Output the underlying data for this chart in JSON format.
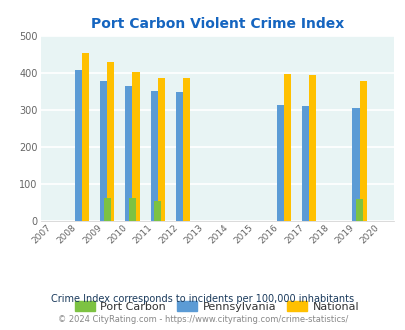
{
  "title": "Port Carbon Violent Crime Index",
  "years": [
    2007,
    2008,
    2009,
    2010,
    2011,
    2012,
    2013,
    2014,
    2015,
    2016,
    2017,
    2018,
    2019,
    2020
  ],
  "port_carbon": {
    "2009": 63,
    "2010": 63,
    "2011": 55,
    "2019": 60
  },
  "pennsylvania": {
    "2008": 410,
    "2009": 380,
    "2010": 365,
    "2011": 352,
    "2012": 348,
    "2016": 315,
    "2017": 312,
    "2019": 306
  },
  "national": {
    "2008": 455,
    "2009": 431,
    "2010": 404,
    "2011": 387,
    "2012": 387,
    "2016": 397,
    "2017": 394,
    "2019": 379
  },
  "bar_width": 0.28,
  "ylim": [
    0,
    500
  ],
  "yticks": [
    0,
    100,
    200,
    300,
    400,
    500
  ],
  "color_port_carbon": "#7dc242",
  "color_pennsylvania": "#5b9bd5",
  "color_national": "#ffc000",
  "bg_color": "#e8f4f4",
  "title_color": "#1565c0",
  "subtitle": "Crime Index corresponds to incidents per 100,000 inhabitants",
  "footer": "© 2024 CityRating.com - https://www.cityrating.com/crime-statistics/",
  "grid_color": "#ffffff",
  "axis_label_color": "#666666",
  "legend_label_color": "#333333"
}
